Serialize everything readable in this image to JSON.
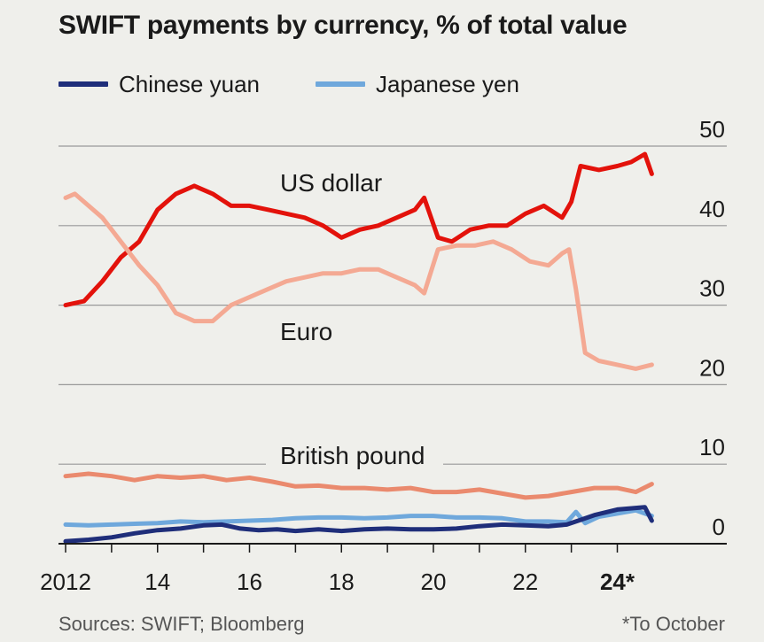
{
  "chart_data": {
    "type": "line",
    "title": "SWIFT payments by currency, % of total value",
    "xlabel": "",
    "ylabel": "",
    "x_ticks": [
      "2012",
      "14",
      "16",
      "18",
      "20",
      "22",
      "24*"
    ],
    "x_tick_values": [
      2012,
      2014,
      2016,
      2018,
      2020,
      2022,
      2024
    ],
    "y_ticks": [
      "0",
      "10",
      "20",
      "30",
      "40",
      "50"
    ],
    "y_tick_values": [
      0,
      10,
      20,
      30,
      40,
      50
    ],
    "xlim": [
      2012,
      2024.8
    ],
    "ylim": [
      0,
      50
    ],
    "grid": true,
    "legend_position": "top-left",
    "legend": [
      "Chinese yuan",
      "Japanese yen"
    ],
    "series": [
      {
        "name": "US dollar",
        "label_shown_on_chart": true,
        "color": "#e3120b",
        "x": [
          2012.0,
          2012.4,
          2012.8,
          2013.2,
          2013.6,
          2014.0,
          2014.4,
          2014.8,
          2015.2,
          2015.6,
          2016.0,
          2016.4,
          2016.8,
          2017.2,
          2017.6,
          2018.0,
          2018.4,
          2018.8,
          2019.2,
          2019.6,
          2019.8,
          2020.1,
          2020.4,
          2020.8,
          2021.2,
          2021.6,
          2022.0,
          2022.4,
          2022.8,
          2023.0,
          2023.2,
          2023.6,
          2024.0,
          2024.3,
          2024.6,
          2024.75
        ],
        "values": [
          30.0,
          30.5,
          33.0,
          36.0,
          38.0,
          42.0,
          44.0,
          45.0,
          44.0,
          42.5,
          42.5,
          42.0,
          41.5,
          41.0,
          40.0,
          38.5,
          39.5,
          40.0,
          41.0,
          42.0,
          43.5,
          38.5,
          38.0,
          39.5,
          40.0,
          40.0,
          41.5,
          42.5,
          41.0,
          43.0,
          47.5,
          47.0,
          47.5,
          48.0,
          49.0,
          46.5
        ]
      },
      {
        "name": "Euro",
        "label_shown_on_chart": true,
        "color": "#f4a993",
        "x": [
          2012.0,
          2012.2,
          2012.4,
          2012.8,
          2013.2,
          2013.6,
          2014.0,
          2014.4,
          2014.8,
          2015.2,
          2015.6,
          2016.0,
          2016.4,
          2016.8,
          2017.2,
          2017.6,
          2018.0,
          2018.4,
          2018.8,
          2019.2,
          2019.6,
          2019.8,
          2020.1,
          2020.5,
          2020.9,
          2021.3,
          2021.7,
          2022.1,
          2022.5,
          2022.8,
          2022.95,
          2023.1,
          2023.3,
          2023.6,
          2024.0,
          2024.4,
          2024.75
        ],
        "values": [
          43.5,
          44.0,
          43.0,
          41.0,
          38.0,
          35.0,
          32.5,
          29.0,
          28.0,
          28.0,
          30.0,
          31.0,
          32.0,
          33.0,
          33.5,
          34.0,
          34.0,
          34.5,
          34.5,
          33.5,
          32.5,
          31.5,
          37.0,
          37.5,
          37.5,
          38.0,
          37.0,
          35.5,
          35.0,
          36.5,
          37.0,
          32.0,
          24.0,
          23.0,
          22.5,
          22.0,
          22.5
        ]
      },
      {
        "name": "British pound",
        "label_shown_on_chart": true,
        "color": "#ea8a6e",
        "x": [
          2012.0,
          2012.5,
          2013.0,
          2013.5,
          2014.0,
          2014.5,
          2015.0,
          2015.5,
          2016.0,
          2016.5,
          2017.0,
          2017.5,
          2018.0,
          2018.5,
          2019.0,
          2019.5,
          2020.0,
          2020.5,
          2021.0,
          2021.5,
          2022.0,
          2022.5,
          2023.0,
          2023.5,
          2024.0,
          2024.4,
          2024.75
        ],
        "values": [
          8.5,
          8.8,
          8.5,
          8.0,
          8.5,
          8.3,
          8.5,
          8.0,
          8.3,
          7.8,
          7.2,
          7.3,
          7.0,
          7.0,
          6.8,
          7.0,
          6.5,
          6.5,
          6.8,
          6.3,
          5.8,
          6.0,
          6.5,
          7.0,
          7.0,
          6.5,
          7.5
        ]
      },
      {
        "name": "Japanese yen",
        "label_shown_on_chart": false,
        "color": "#6fa8dc",
        "x": [
          2012.0,
          2012.5,
          2013.0,
          2013.5,
          2014.0,
          2014.5,
          2015.0,
          2015.5,
          2016.0,
          2016.5,
          2017.0,
          2017.5,
          2018.0,
          2018.5,
          2019.0,
          2019.5,
          2020.0,
          2020.5,
          2021.0,
          2021.5,
          2022.0,
          2022.5,
          2022.9,
          2023.1,
          2023.3,
          2023.6,
          2024.0,
          2024.4,
          2024.75
        ],
        "values": [
          2.4,
          2.3,
          2.4,
          2.5,
          2.6,
          2.8,
          2.7,
          2.8,
          2.9,
          3.0,
          3.2,
          3.3,
          3.3,
          3.2,
          3.3,
          3.5,
          3.5,
          3.3,
          3.3,
          3.2,
          2.8,
          2.8,
          2.7,
          4.0,
          2.6,
          3.4,
          3.8,
          4.2,
          3.5
        ]
      },
      {
        "name": "Chinese yuan",
        "label_shown_on_chart": false,
        "color": "#1f2e7a",
        "x": [
          2012.0,
          2012.5,
          2013.0,
          2013.5,
          2014.0,
          2014.5,
          2015.0,
          2015.4,
          2015.8,
          2016.2,
          2016.6,
          2017.0,
          2017.5,
          2018.0,
          2018.5,
          2019.0,
          2019.5,
          2020.0,
          2020.5,
          2021.0,
          2021.5,
          2022.0,
          2022.5,
          2022.9,
          2023.2,
          2023.5,
          2024.0,
          2024.4,
          2024.6,
          2024.75
        ],
        "values": [
          0.3,
          0.5,
          0.8,
          1.3,
          1.7,
          1.9,
          2.3,
          2.4,
          1.9,
          1.7,
          1.8,
          1.6,
          1.8,
          1.6,
          1.8,
          1.9,
          1.8,
          1.8,
          1.9,
          2.2,
          2.4,
          2.3,
          2.2,
          2.4,
          3.0,
          3.6,
          4.3,
          4.5,
          4.6,
          2.9
        ]
      }
    ]
  },
  "labels": {
    "us_dollar": "US dollar",
    "euro": "Euro",
    "british_pound": "British pound"
  },
  "legend": {
    "yuan": "Chinese yuan",
    "yen": "Japanese yen"
  },
  "footer": {
    "source": "Sources: SWIFT; Bloomberg",
    "note": "*To October"
  },
  "colors": {
    "background": "#efefeb",
    "gridline": "#999999",
    "axis": "#1a1a1a"
  }
}
